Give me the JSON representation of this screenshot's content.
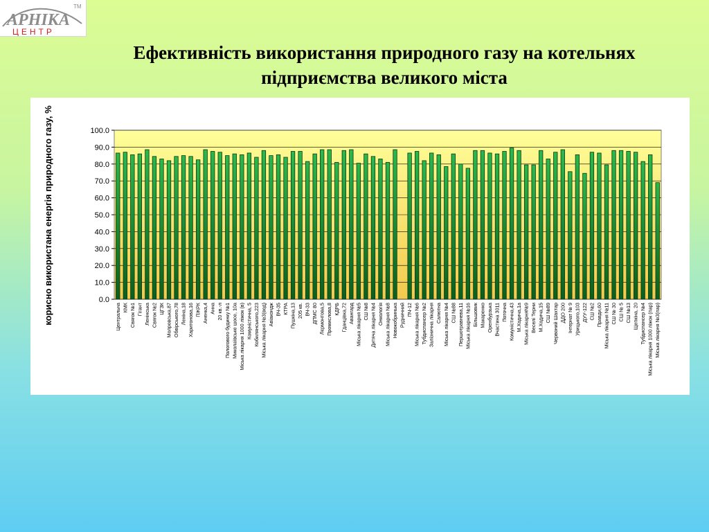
{
  "logo": {
    "name": "АРНІКА",
    "tm": "TM",
    "subtitle": "ЦЕНТР"
  },
  "colors": {
    "bar_fill_top": "#2db84d",
    "bar_fill_bottom": "#0c5e1e",
    "bar_stroke": "#063a10",
    "plot_bg_top": "#ffff99",
    "plot_bg_bottom": "#f2c94c",
    "logo_red": "#d21e1e",
    "logo_gray": "#8c8c8c"
  },
  "chart_data": {
    "type": "bar",
    "title": "Ефективність використання природного газу на котельнях підприємства великого міста",
    "xlabel": "",
    "ylabel": "корисно використана енергія природного газу, %",
    "ylim": [
      0,
      100
    ],
    "yticks": [
      "0.0",
      "10.0",
      "20.0",
      "30.0",
      "40.0",
      "50.0",
      "60.0",
      "70.0",
      "80.0",
      "90.0",
      "100.0"
    ],
    "grid": true,
    "legend": "none",
    "categories": [
      "Центральна",
      "КМК",
      "Свяrок №1",
      "Гігант",
      "Ленінська",
      "Свяrок №2",
      "ЦГЗК",
      "Молровська,87",
      "Обвірського,78",
      "Леніна,18",
      "Харитонова,16",
      "ПЖРК",
      "Аненка,4",
      "Анна",
      "20 кв.-л",
      "Пологового будинку №1",
      "Миколаївське шосе, 10а",
      "Міська лікарня 1000 ліжок (в)",
      "Комуністична, 5",
      "Кобилянського,223",
      "Міська лікарня №3(вод)",
      "Авіакондж",
      "ВЧ-35",
      "КТРА",
      "Пушкіна,13",
      "205 кв.",
      "ВЧ-33",
      "ДПМС 80",
      "Лєрмонтова,5",
      "Промислова,8",
      "КДРБ",
      "Гданцівка,72",
      "Авангард",
      "Міська лікарня №5",
      "СШ №8",
      "Дитяча лікарня №4",
      "Онкологія",
      "Міська лікарня №8",
      "Новокобринька",
      "Рудничний",
      "ПЧ-12",
      "Міська лікарня №6",
      "Тубдиспансер №2",
      "Залізнична лікарня",
      "Салютна",
      "Міська лікарня №4",
      "СШ №88",
      "Першотравнева,11",
      "Міська лікарня №16",
      "Більшовик",
      "Макаренко",
      "Оренбурзька",
      "Вчастина 3011",
      "Поточна",
      "Комуністична,43",
      "М.Ходича,1а",
      "Міська лікарня№9",
      "Веселі Терни",
      "М.Ходича,15",
      "СШ №89",
      "Червоний Шахтар",
      "ДДО 200",
      "Інтернат № 9",
      "Урицького,103",
      "ДУУ-122",
      "СШ №2",
      "Правди,60",
      "Міська лікарня №11",
      "СШ № 30",
      "СШ № 5",
      "СШ №13",
      "Щепкіна, 20",
      "Тубдиспансер №4",
      "Міська лікарня 1000 ліжок (пар)",
      "Міська лікарня №3(пар)"
    ],
    "values": [
      86.5,
      87.0,
      85.5,
      86.0,
      88.5,
      84.5,
      83.0,
      82.0,
      84.5,
      85.0,
      84.5,
      82.5,
      88.5,
      87.5,
      87.0,
      85.0,
      86.0,
      85.5,
      86.5,
      84.0,
      88.0,
      85.0,
      85.5,
      84.0,
      87.5,
      87.5,
      81.5,
      86.0,
      88.5,
      88.5,
      81.0,
      88.0,
      88.5,
      80.5,
      86.0,
      84.5,
      83.0,
      81.0,
      88.5,
      0.0,
      86.5,
      87.5,
      82.0,
      86.5,
      85.5,
      78.5,
      86.0,
      80.0,
      77.5,
      88.0,
      88.0,
      86.5,
      86.0,
      87.5,
      89.5,
      88.0,
      79.5,
      79.5,
      88.0,
      83.0,
      87.0,
      88.5,
      75.5,
      85.5,
      74.5,
      87.0,
      86.5,
      79.5,
      88.0,
      88.0,
      87.5,
      87.0,
      81.5,
      85.5,
      69.0
    ]
  }
}
